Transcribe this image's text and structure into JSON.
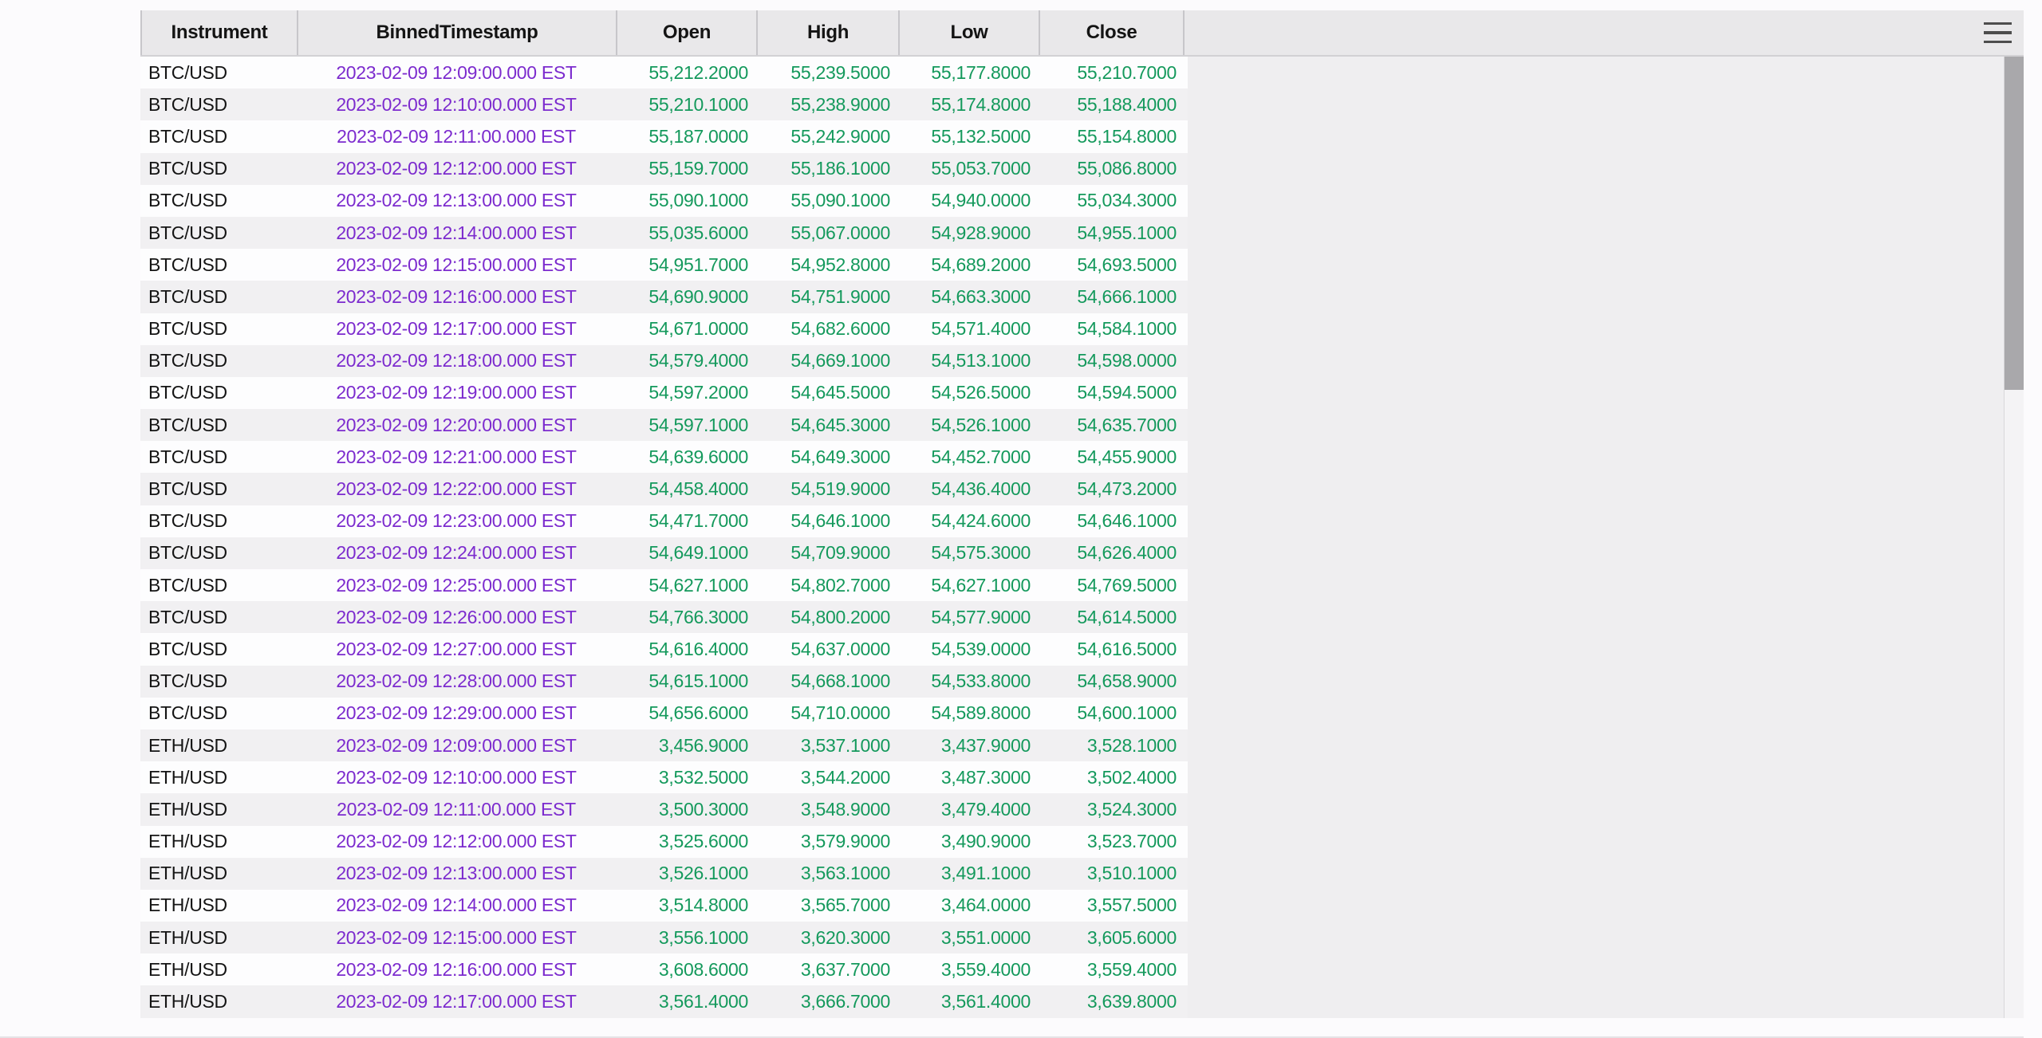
{
  "header": {
    "columns": [
      "Instrument",
      "BinnedTimestamp",
      "Open",
      "High",
      "Low",
      "Close"
    ],
    "menu_icon": "hamburger-icon"
  },
  "colors": {
    "timestamp": "#7c2bce",
    "value": "#14995c",
    "header_background": "#e9e8ea",
    "row_stripe": "#f1f0f2",
    "row_plain": "#fdfdfe"
  },
  "table": {
    "rows": [
      [
        "BTC/USD",
        "2023-02-09 12:09:00.000 EST",
        "55,212.2000",
        "55,239.5000",
        "55,177.8000",
        "55,210.7000"
      ],
      [
        "BTC/USD",
        "2023-02-09 12:10:00.000 EST",
        "55,210.1000",
        "55,238.9000",
        "55,174.8000",
        "55,188.4000"
      ],
      [
        "BTC/USD",
        "2023-02-09 12:11:00.000 EST",
        "55,187.0000",
        "55,242.9000",
        "55,132.5000",
        "55,154.8000"
      ],
      [
        "BTC/USD",
        "2023-02-09 12:12:00.000 EST",
        "55,159.7000",
        "55,186.1000",
        "55,053.7000",
        "55,086.8000"
      ],
      [
        "BTC/USD",
        "2023-02-09 12:13:00.000 EST",
        "55,090.1000",
        "55,090.1000",
        "54,940.0000",
        "55,034.3000"
      ],
      [
        "BTC/USD",
        "2023-02-09 12:14:00.000 EST",
        "55,035.6000",
        "55,067.0000",
        "54,928.9000",
        "54,955.1000"
      ],
      [
        "BTC/USD",
        "2023-02-09 12:15:00.000 EST",
        "54,951.7000",
        "54,952.8000",
        "54,689.2000",
        "54,693.5000"
      ],
      [
        "BTC/USD",
        "2023-02-09 12:16:00.000 EST",
        "54,690.9000",
        "54,751.9000",
        "54,663.3000",
        "54,666.1000"
      ],
      [
        "BTC/USD",
        "2023-02-09 12:17:00.000 EST",
        "54,671.0000",
        "54,682.6000",
        "54,571.4000",
        "54,584.1000"
      ],
      [
        "BTC/USD",
        "2023-02-09 12:18:00.000 EST",
        "54,579.4000",
        "54,669.1000",
        "54,513.1000",
        "54,598.0000"
      ],
      [
        "BTC/USD",
        "2023-02-09 12:19:00.000 EST",
        "54,597.2000",
        "54,645.5000",
        "54,526.5000",
        "54,594.5000"
      ],
      [
        "BTC/USD",
        "2023-02-09 12:20:00.000 EST",
        "54,597.1000",
        "54,645.3000",
        "54,526.1000",
        "54,635.7000"
      ],
      [
        "BTC/USD",
        "2023-02-09 12:21:00.000 EST",
        "54,639.6000",
        "54,649.3000",
        "54,452.7000",
        "54,455.9000"
      ],
      [
        "BTC/USD",
        "2023-02-09 12:22:00.000 EST",
        "54,458.4000",
        "54,519.9000",
        "54,436.4000",
        "54,473.2000"
      ],
      [
        "BTC/USD",
        "2023-02-09 12:23:00.000 EST",
        "54,471.7000",
        "54,646.1000",
        "54,424.6000",
        "54,646.1000"
      ],
      [
        "BTC/USD",
        "2023-02-09 12:24:00.000 EST",
        "54,649.1000",
        "54,709.9000",
        "54,575.3000",
        "54,626.4000"
      ],
      [
        "BTC/USD",
        "2023-02-09 12:25:00.000 EST",
        "54,627.1000",
        "54,802.7000",
        "54,627.1000",
        "54,769.5000"
      ],
      [
        "BTC/USD",
        "2023-02-09 12:26:00.000 EST",
        "54,766.3000",
        "54,800.2000",
        "54,577.9000",
        "54,614.5000"
      ],
      [
        "BTC/USD",
        "2023-02-09 12:27:00.000 EST",
        "54,616.4000",
        "54,637.0000",
        "54,539.0000",
        "54,616.5000"
      ],
      [
        "BTC/USD",
        "2023-02-09 12:28:00.000 EST",
        "54,615.1000",
        "54,668.1000",
        "54,533.8000",
        "54,658.9000"
      ],
      [
        "BTC/USD",
        "2023-02-09 12:29:00.000 EST",
        "54,656.6000",
        "54,710.0000",
        "54,589.8000",
        "54,600.1000"
      ],
      [
        "ETH/USD",
        "2023-02-09 12:09:00.000 EST",
        "3,456.9000",
        "3,537.1000",
        "3,437.9000",
        "3,528.1000"
      ],
      [
        "ETH/USD",
        "2023-02-09 12:10:00.000 EST",
        "3,532.5000",
        "3,544.2000",
        "3,487.3000",
        "3,502.4000"
      ],
      [
        "ETH/USD",
        "2023-02-09 12:11:00.000 EST",
        "3,500.3000",
        "3,548.9000",
        "3,479.4000",
        "3,524.3000"
      ],
      [
        "ETH/USD",
        "2023-02-09 12:12:00.000 EST",
        "3,525.6000",
        "3,579.9000",
        "3,490.9000",
        "3,523.7000"
      ],
      [
        "ETH/USD",
        "2023-02-09 12:13:00.000 EST",
        "3,526.1000",
        "3,563.1000",
        "3,491.1000",
        "3,510.1000"
      ],
      [
        "ETH/USD",
        "2023-02-09 12:14:00.000 EST",
        "3,514.8000",
        "3,565.7000",
        "3,464.0000",
        "3,557.5000"
      ],
      [
        "ETH/USD",
        "2023-02-09 12:15:00.000 EST",
        "3,556.1000",
        "3,620.3000",
        "3,551.0000",
        "3,605.6000"
      ],
      [
        "ETH/USD",
        "2023-02-09 12:16:00.000 EST",
        "3,608.6000",
        "3,637.7000",
        "3,559.4000",
        "3,559.4000"
      ],
      [
        "ETH/USD",
        "2023-02-09 12:17:00.000 EST",
        "3,561.4000",
        "3,666.7000",
        "3,561.4000",
        "3,639.8000"
      ]
    ]
  }
}
